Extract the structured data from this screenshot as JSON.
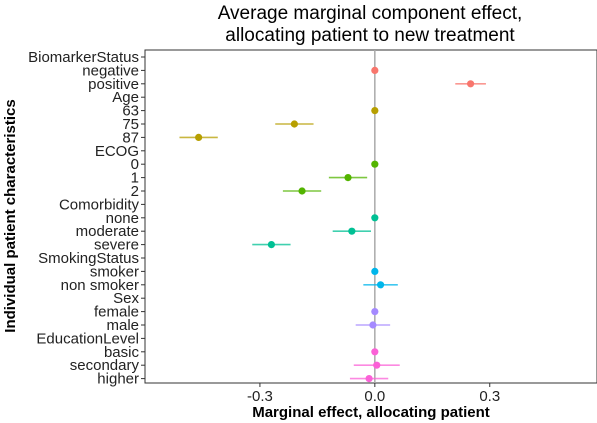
{
  "chart_data": {
    "type": "scatter",
    "title_lines": [
      "Average marginal component effect,",
      "allocating patient to new treatment"
    ],
    "xlabel": "Marginal effect, allocating patient",
    "ylabel": "Individual patient characteristics",
    "xlim": [
      -0.6,
      0.58
    ],
    "x_ticks": [
      {
        "value": -0.3,
        "label": "-0.3"
      },
      {
        "value": 0.0,
        "label": "0.0"
      },
      {
        "value": 0.3,
        "label": "0.3"
      }
    ],
    "reference_line": 0,
    "grid": false,
    "legend": "none",
    "rows": [
      {
        "label": "BiomarkerStatus",
        "is_header": true
      },
      {
        "label": "negative",
        "estimate": 0.0,
        "ci": [
          0.0,
          0.0
        ],
        "color": "#F8766D"
      },
      {
        "label": "positive",
        "estimate": 0.25,
        "ci": [
          0.21,
          0.29
        ],
        "color": "#F8766D"
      },
      {
        "label": "Age",
        "is_header": true
      },
      {
        "label": "63",
        "estimate": 0.0,
        "ci": [
          0.0,
          0.0
        ],
        "color": "#B79F00"
      },
      {
        "label": "75",
        "estimate": -0.21,
        "ci": [
          -0.26,
          -0.16
        ],
        "color": "#B79F00"
      },
      {
        "label": "87",
        "estimate": -0.46,
        "ci": [
          -0.51,
          -0.41
        ],
        "color": "#B79F00"
      },
      {
        "label": "ECOG",
        "is_header": true
      },
      {
        "label": "0",
        "estimate": 0.0,
        "ci": [
          0.0,
          0.0
        ],
        "color": "#53B400"
      },
      {
        "label": "1",
        "estimate": -0.07,
        "ci": [
          -0.12,
          -0.02
        ],
        "color": "#53B400"
      },
      {
        "label": "2",
        "estimate": -0.19,
        "ci": [
          -0.24,
          -0.14
        ],
        "color": "#53B400"
      },
      {
        "label": "Comorbidity",
        "is_header": true
      },
      {
        "label": "none",
        "estimate": 0.0,
        "ci": [
          0.0,
          0.0
        ],
        "color": "#00C094"
      },
      {
        "label": "moderate",
        "estimate": -0.06,
        "ci": [
          -0.11,
          -0.01
        ],
        "color": "#00C094"
      },
      {
        "label": "severe",
        "estimate": -0.27,
        "ci": [
          -0.32,
          -0.22
        ],
        "color": "#00C094"
      },
      {
        "label": "SmokingStatus",
        "is_header": true
      },
      {
        "label": "smoker",
        "estimate": 0.0,
        "ci": [
          0.0,
          0.0
        ],
        "color": "#00B6EB"
      },
      {
        "label": "non smoker",
        "estimate": 0.015,
        "ci": [
          -0.03,
          0.06
        ],
        "color": "#00B6EB"
      },
      {
        "label": "Sex",
        "is_header": true
      },
      {
        "label": "female",
        "estimate": 0.0,
        "ci": [
          0.0,
          0.0
        ],
        "color": "#A58AFF"
      },
      {
        "label": "male",
        "estimate": -0.005,
        "ci": [
          -0.05,
          0.04
        ],
        "color": "#A58AFF"
      },
      {
        "label": "EducationLevel",
        "is_header": true
      },
      {
        "label": "basic",
        "estimate": 0.0,
        "ci": [
          0.0,
          0.0
        ],
        "color": "#FB61D7"
      },
      {
        "label": "secondary",
        "estimate": 0.005,
        "ci": [
          -0.055,
          0.065
        ],
        "color": "#FB61D7"
      },
      {
        "label": "higher",
        "estimate": -0.015,
        "ci": [
          -0.065,
          0.035
        ],
        "color": "#FB61D7"
      }
    ]
  }
}
